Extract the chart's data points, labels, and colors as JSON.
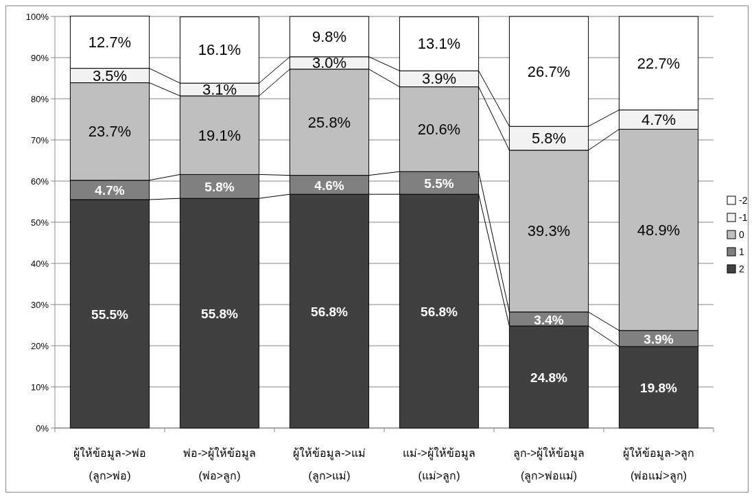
{
  "chart_data": {
    "type": "bar",
    "stacked": true,
    "categories": [
      "ผู้ให้ข้อมูล->พ่อ\n(ลูก>พ่อ)",
      "พ่อ->ผู้ให้ข้อมูล\n(พ่อ>ลูก)",
      "ผู้ให้ข้อมูล->แม่\n(ลูก>แม่)",
      "แม่->ผู้ให้ข้อมูล\n(แม่>ลูก)",
      "ลูก->ผู้ให้ข้อมูล\n(ลูก>พ่อแม่)",
      "ผู้ให้ข้อมูล->ลูก\n(พ่อแม่>ลูก)"
    ],
    "series": [
      {
        "name": "2",
        "color": "#404040",
        "values": [
          55.5,
          55.8,
          56.8,
          56.8,
          24.8,
          19.8
        ],
        "value_labels": [
          "55.5%",
          "55.8%",
          "56.8%",
          "56.8%",
          "24.8%",
          "19.8%"
        ]
      },
      {
        "name": "1",
        "color": "#808080",
        "values": [
          4.7,
          5.8,
          4.6,
          5.5,
          3.4,
          3.9
        ],
        "value_labels": [
          "4.7%",
          "5.8%",
          "4.6%",
          "5.5%",
          "3.4%",
          "3.9%"
        ]
      },
      {
        "name": "0",
        "color": "#bfbfbf",
        "values": [
          23.7,
          19.1,
          25.8,
          20.6,
          39.3,
          48.9
        ],
        "value_labels": [
          "23.7%",
          "19.1%",
          "25.8%",
          "20.6%",
          "39.3%",
          "48.9%"
        ]
      },
      {
        "name": "-1",
        "color": "#f2f2f2",
        "values": [
          3.5,
          3.1,
          3.0,
          3.9,
          5.8,
          4.7
        ],
        "value_labels": [
          "3.5%",
          "3.1%",
          "3.0%",
          "3.9%",
          "5.8%",
          "4.7%"
        ]
      },
      {
        "name": "-2",
        "color": "#ffffff",
        "values": [
          12.7,
          16.1,
          9.8,
          13.1,
          26.7,
          22.7
        ],
        "value_labels": [
          "12.7%",
          "16.1%",
          "9.8%",
          "13.1%",
          "26.7%",
          "22.7%"
        ]
      }
    ],
    "ylim": [
      0,
      100
    ],
    "yticks": [
      {
        "value": 0,
        "label": "0%"
      },
      {
        "value": 10,
        "label": "10%"
      },
      {
        "value": 20,
        "label": "20%"
      },
      {
        "value": 30,
        "label": "30%"
      },
      {
        "value": 40,
        "label": "40%"
      },
      {
        "value": 50,
        "label": "50%"
      },
      {
        "value": 60,
        "label": "60%"
      },
      {
        "value": 70,
        "label": "70%"
      },
      {
        "value": 80,
        "label": "80%"
      },
      {
        "value": 90,
        "label": "90%"
      },
      {
        "value": 100,
        "label": "100%"
      }
    ],
    "grid": "y",
    "legend": "right"
  }
}
